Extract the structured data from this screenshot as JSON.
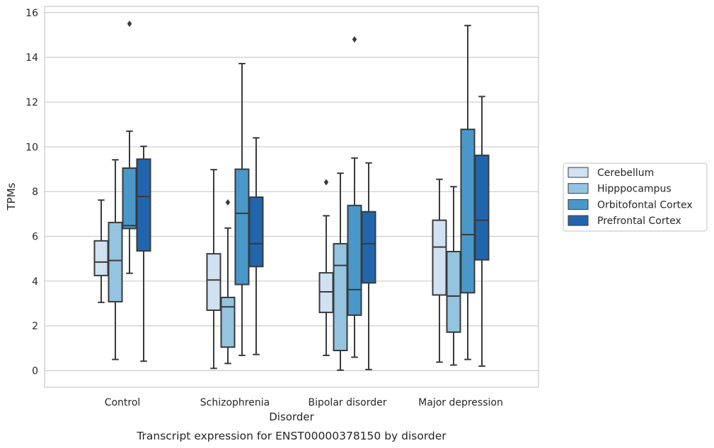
{
  "chart_data": {
    "type": "box",
    "caption": "Transcript expression for ENST00000378150 by disorder",
    "xlabel": "Disorder",
    "ylabel": "TPMs",
    "ylim": [
      -0.75,
      16.3
    ],
    "yticks": [
      0,
      2,
      4,
      6,
      8,
      10,
      12,
      14,
      16
    ],
    "grid": true,
    "legend_position": "right",
    "categories": [
      "Control",
      "Schizophrenia",
      "Bipolar disorder",
      "Major depression"
    ],
    "series": [
      {
        "name": "Cerebellum",
        "color": "#d0e1f2",
        "boxes": [
          {
            "whisker_low": 3.05,
            "q1": 4.25,
            "median": 4.85,
            "q3": 5.8,
            "whisker_high": 7.62,
            "outliers": []
          },
          {
            "whisker_low": 0.1,
            "q1": 2.7,
            "median": 4.05,
            "q3": 5.22,
            "whisker_high": 8.98,
            "outliers": []
          },
          {
            "whisker_low": 0.68,
            "q1": 2.6,
            "median": 3.52,
            "q3": 4.37,
            "whisker_high": 6.92,
            "outliers": [
              8.42
            ]
          },
          {
            "whisker_low": 0.38,
            "q1": 3.38,
            "median": 5.52,
            "q3": 6.72,
            "whisker_high": 8.55,
            "outliers": []
          }
        ]
      },
      {
        "name": "Hipppocampus",
        "color": "#94c4df",
        "boxes": [
          {
            "whisker_low": 0.5,
            "q1": 3.08,
            "median": 4.92,
            "q3": 6.62,
            "whisker_high": 9.42,
            "outliers": []
          },
          {
            "whisker_low": 0.32,
            "q1": 1.05,
            "median": 2.85,
            "q3": 3.27,
            "whisker_high": 6.37,
            "outliers": [
              7.52
            ]
          },
          {
            "whisker_low": 0.02,
            "q1": 0.9,
            "median": 4.7,
            "q3": 5.67,
            "whisker_high": 8.82,
            "outliers": []
          },
          {
            "whisker_low": 0.25,
            "q1": 1.72,
            "median": 3.33,
            "q3": 5.32,
            "whisker_high": 8.22,
            "outliers": []
          }
        ]
      },
      {
        "name": "Orbitofontal Cortex",
        "color": "#4a98c9",
        "boxes": [
          {
            "whisker_low": 4.35,
            "q1": 6.35,
            "median": 6.48,
            "q3": 9.05,
            "whisker_high": 10.7,
            "outliers": [
              15.5
            ]
          },
          {
            "whisker_low": 0.68,
            "q1": 3.85,
            "median": 7.03,
            "q3": 9.0,
            "whisker_high": 13.72,
            "outliers": []
          },
          {
            "whisker_low": 0.6,
            "q1": 2.48,
            "median": 3.62,
            "q3": 7.38,
            "whisker_high": 9.5,
            "outliers": [
              14.8
            ]
          },
          {
            "whisker_low": 0.5,
            "q1": 3.48,
            "median": 6.08,
            "q3": 10.78,
            "whisker_high": 15.42,
            "outliers": []
          }
        ]
      },
      {
        "name": "Prefrontal Cortex",
        "color": "#2166ac",
        "boxes": [
          {
            "whisker_low": 0.42,
            "q1": 5.35,
            "median": 7.78,
            "q3": 9.45,
            "whisker_high": 10.02,
            "outliers": []
          },
          {
            "whisker_low": 0.72,
            "q1": 4.65,
            "median": 5.67,
            "q3": 7.75,
            "whisker_high": 10.4,
            "outliers": []
          },
          {
            "whisker_low": 0.05,
            "q1": 3.92,
            "median": 5.67,
            "q3": 7.1,
            "whisker_high": 9.28,
            "outliers": []
          },
          {
            "whisker_low": 0.2,
            "q1": 4.95,
            "median": 6.72,
            "q3": 9.62,
            "whisker_high": 12.25,
            "outliers": []
          }
        ]
      }
    ]
  }
}
